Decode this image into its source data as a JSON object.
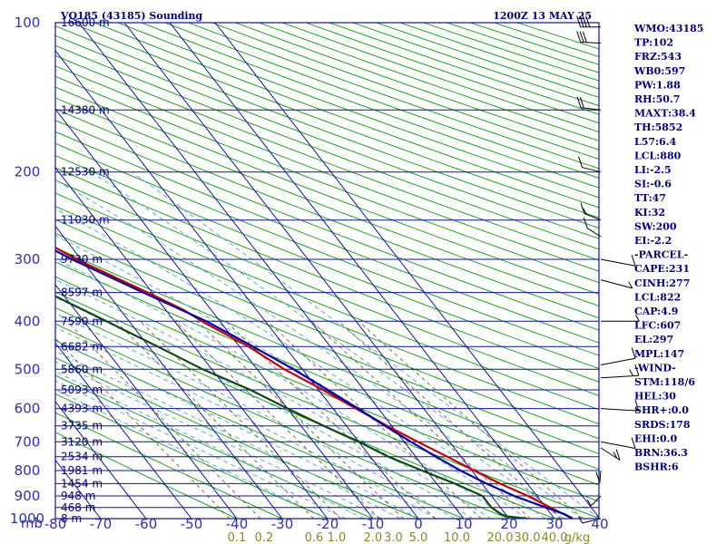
{
  "title": "VQ185 (43185) Sounding",
  "valid_time": "1200Z 13 MAY 25",
  "chart_data": {
    "type": "skew-t",
    "pressure_unit": "mb",
    "pressure_levels": [
      100,
      200,
      300,
      400,
      500,
      600,
      700,
      800,
      900,
      1000
    ],
    "temperature_ticks": [
      "-80",
      "-70",
      "-60",
      "-50",
      "-40",
      "-30",
      "-20",
      "-10",
      "0",
      "10",
      "20",
      "30",
      "40"
    ],
    "temp_range": [
      -80,
      40
    ],
    "mixing_ratio_labels": [
      {
        "label": "0.1",
        "t": -40
      },
      {
        "label": "0.2",
        "t": -34
      },
      {
        "label": "0.6",
        "t": -23
      },
      {
        "label": "1.0",
        "t": -18
      },
      {
        "label": "2.0",
        "t": -10
      },
      {
        "label": "3.0",
        "t": -5.5
      },
      {
        "label": "5.0",
        "t": 0
      },
      {
        "label": "10.0",
        "t": 8.5
      },
      {
        "label": "20.0",
        "t": 18
      },
      {
        "label": "30.0",
        "t": 24
      },
      {
        "label": "40.0",
        "t": 30
      },
      {
        "label": "g/kg",
        "t": 35
      }
    ],
    "height_labels": [
      {
        "p": 100,
        "label": "16600 m"
      },
      {
        "p": 150,
        "label": "14380 m"
      },
      {
        "p": 200,
        "label": "12530 m"
      },
      {
        "p": 250,
        "label": "11030 m"
      },
      {
        "p": 300,
        "label": "9730 m"
      },
      {
        "p": 350,
        "label": "8597 m"
      },
      {
        "p": 400,
        "label": "7590 m"
      },
      {
        "p": 450,
        "label": "6682 m"
      },
      {
        "p": 500,
        "label": "5860 m"
      },
      {
        "p": 550,
        "label": "5093 m"
      },
      {
        "p": 600,
        "label": "4393 m"
      },
      {
        "p": 650,
        "label": "3735 m"
      },
      {
        "p": 700,
        "label": "3120 m"
      },
      {
        "p": 750,
        "label": "2534 m"
      },
      {
        "p": 800,
        "label": "1981 m"
      },
      {
        "p": 850,
        "label": "1454 m"
      },
      {
        "p": 900,
        "label": "948 m"
      },
      {
        "p": 950,
        "label": "468 m"
      },
      {
        "p": 1000,
        "label": "8 m"
      }
    ],
    "series": [
      {
        "name": "Temperature",
        "color": "#cc0000",
        "points": [
          [
            100,
            -80
          ],
          [
            150,
            -66
          ],
          [
            200,
            -52
          ],
          [
            250,
            -40
          ],
          [
            300,
            -31
          ],
          [
            350,
            -21
          ],
          [
            380,
            -16
          ],
          [
            400,
            -14
          ],
          [
            450,
            -8
          ],
          [
            500,
            -4
          ],
          [
            550,
            1
          ],
          [
            600,
            5
          ],
          [
            650,
            9
          ],
          [
            700,
            13
          ],
          [
            750,
            17
          ],
          [
            800,
            20.5
          ],
          [
            850,
            24
          ],
          [
            900,
            28
          ],
          [
            950,
            31
          ],
          [
            1000,
            34
          ]
        ]
      },
      {
        "name": "Dewpoint",
        "color": "#0a4a0a",
        "points": [
          [
            200,
            -80
          ],
          [
            250,
            -61
          ],
          [
            300,
            -52
          ],
          [
            350,
            -43
          ],
          [
            400,
            -35
          ],
          [
            450,
            -28
          ],
          [
            500,
            -22
          ],
          [
            550,
            -15
          ],
          [
            600,
            -10
          ],
          [
            650,
            -5
          ],
          [
            700,
            0
          ],
          [
            750,
            4
          ],
          [
            800,
            9
          ],
          [
            850,
            14
          ],
          [
            900,
            18
          ],
          [
            950,
            18
          ],
          [
            980,
            19
          ],
          [
            990,
            20
          ],
          [
            1000,
            24
          ]
        ]
      },
      {
        "name": "Parcel",
        "color": "#0000b0",
        "points": [
          [
            120,
            -80
          ],
          [
            150,
            -70
          ],
          [
            200,
            -53
          ],
          [
            250,
            -42
          ],
          [
            300,
            -32
          ],
          [
            350,
            -22
          ],
          [
            400,
            -13
          ],
          [
            450,
            -7
          ],
          [
            500,
            -2
          ],
          [
            550,
            2
          ],
          [
            600,
            5.5
          ],
          [
            650,
            8.5
          ],
          [
            700,
            11.5
          ],
          [
            750,
            14.5
          ],
          [
            800,
            17.5
          ],
          [
            850,
            21
          ],
          [
            900,
            25
          ],
          [
            950,
            30
          ],
          [
            980,
            33
          ],
          [
            1000,
            34
          ]
        ]
      }
    ],
    "wind_barbs": [
      {
        "p": 102,
        "dir": 270,
        "spd": 40
      },
      {
        "p": 110,
        "dir": 275,
        "spd": 30
      },
      {
        "p": 150,
        "dir": 280,
        "spd": 20
      },
      {
        "p": 200,
        "dir": 290,
        "spd": 10
      },
      {
        "p": 250,
        "dir": 300,
        "spd": 15
      },
      {
        "p": 270,
        "dir": 310,
        "spd": 10
      },
      {
        "p": 300,
        "dir": 120,
        "spd": 10
      },
      {
        "p": 330,
        "dir": 130,
        "spd": 5
      },
      {
        "p": 400,
        "dir": 90,
        "spd": 5
      },
      {
        "p": 490,
        "dir": 60,
        "spd": 10
      },
      {
        "p": 520,
        "dir": 80,
        "spd": 15
      },
      {
        "p": 600,
        "dir": 100,
        "spd": 10
      },
      {
        "p": 700,
        "dir": 120,
        "spd": 10
      },
      {
        "p": 720,
        "dir": 160,
        "spd": 15
      },
      {
        "p": 800,
        "dir": 200,
        "spd": 10
      },
      {
        "p": 900,
        "dir": 220,
        "spd": 5
      },
      {
        "p": 1000,
        "dir": 250,
        "spd": 5
      }
    ],
    "indices": [
      "WMO:43185",
      "TP:102",
      "FRZ:543",
      "WB0:597",
      "PW:1.88",
      "RH:50.7",
      "MAXT:38.4",
      "TH:5852",
      "L57:6.4",
      "LCL:880",
      "LI:-2.5",
      "SI:-0.6",
      "TT:47",
      "KI:32",
      "SW:200",
      "EI:-2.2",
      "-PARCEL-",
      "CAPE:231",
      "CINH:277",
      "LCL:822",
      "CAP:4.9",
      "LFC:607",
      "EL:297",
      "MPL:147",
      "-WIND-",
      "STM:118/6",
      "HEL:30",
      "SHR+:0.0",
      "SRDS:178",
      "EHI:0.0",
      "BRN:36.3",
      "BSHR:6"
    ]
  }
}
